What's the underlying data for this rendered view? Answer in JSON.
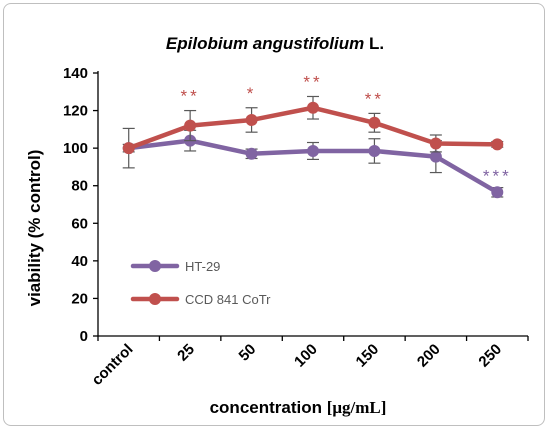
{
  "chart_data": {
    "type": "line",
    "title_italic": "Epilobium angustifolium",
    "title_suffix": " L.",
    "xlabel_prefix": "concentration ",
    "xlabel_unit": "[μg/mL]",
    "ylabel": "viability (% control)",
    "categories": [
      "control",
      "25",
      "50",
      "100",
      "150",
      "200",
      "250"
    ],
    "ylim": [
      0,
      140
    ],
    "yticks": [
      0,
      20,
      40,
      60,
      80,
      100,
      120,
      140
    ],
    "grid": false,
    "legend_position": "bottom-left",
    "series": [
      {
        "name": "HT-29",
        "color": "#8064a2",
        "values": [
          100,
          104,
          97,
          98.5,
          98.5,
          95.5,
          76.5
        ],
        "errors": [
          10.5,
          5.5,
          2.5,
          4.5,
          6.5,
          8.5,
          2.5
        ],
        "significance": [
          "",
          "",
          "",
          "",
          "",
          "",
          "***"
        ]
      },
      {
        "name": "CCD 841 CoTr",
        "color": "#c0504d",
        "values": [
          100,
          112,
          115,
          121.5,
          113.5,
          102.5,
          102
        ],
        "errors": [
          2.0,
          8.0,
          6.5,
          6.0,
          5.0,
          4.5,
          1.5
        ],
        "significance": [
          "",
          "**",
          "*",
          "**",
          "**",
          "",
          ""
        ]
      }
    ]
  }
}
